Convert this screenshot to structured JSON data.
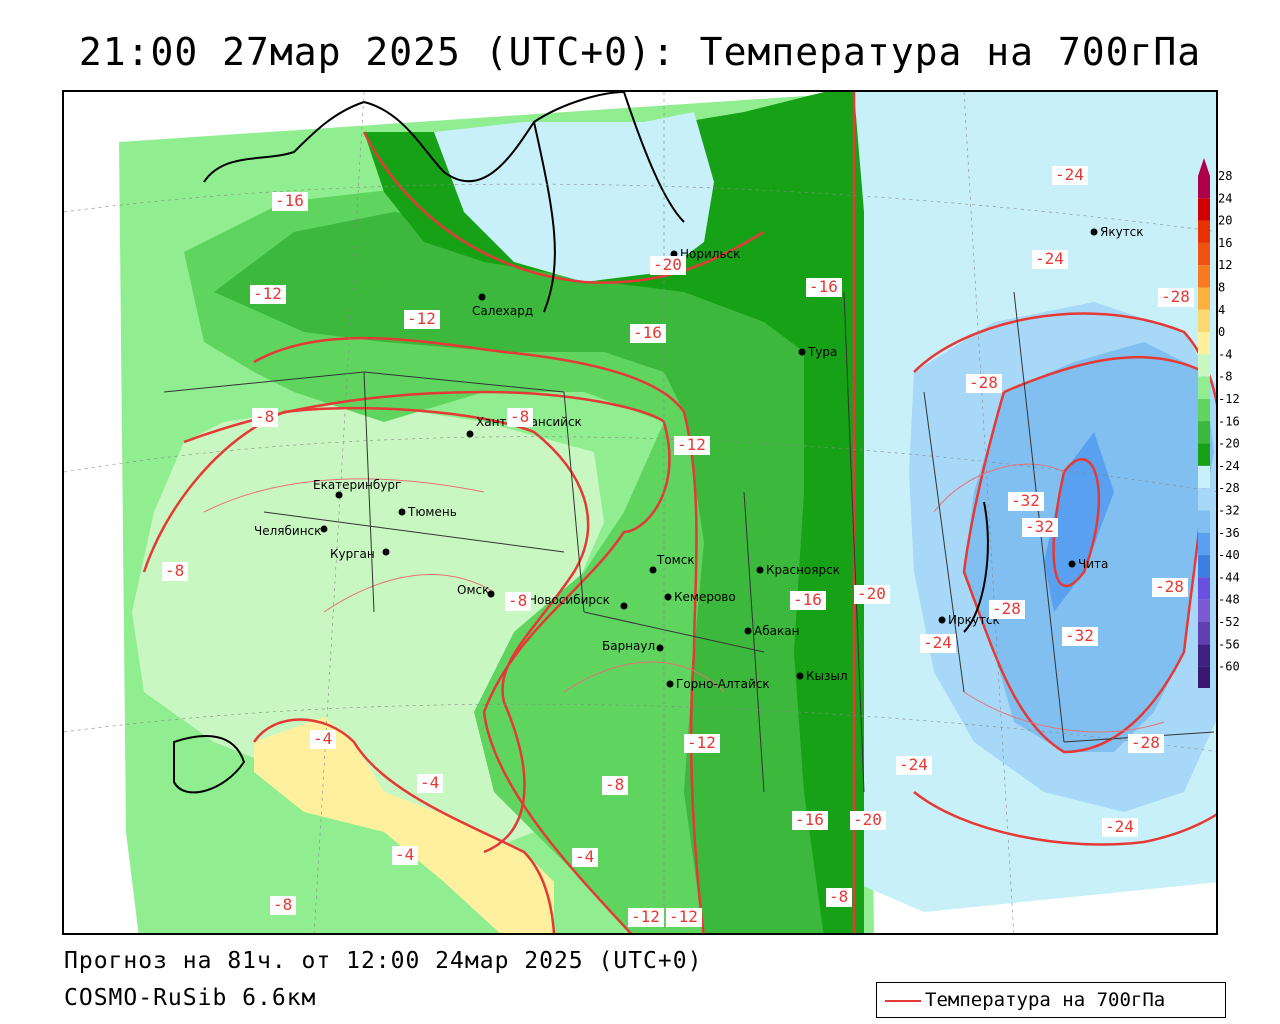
{
  "title": "21:00 27мар 2025 (UTC+0): Температура на 700гПа",
  "forecast_info": "Прогноз на 81ч. от 12:00 24мар 2025 (UTC+0)",
  "model_info": "COSMO-RuSib 6.6км",
  "legend": {
    "line_label": "Температура на 700гПа",
    "line_color": "#e53935"
  },
  "color_scale": {
    "levels": [
      28,
      24,
      20,
      16,
      12,
      8,
      4,
      0,
      -4,
      -8,
      -12,
      -16,
      -20,
      -24,
      -28,
      -32,
      -36,
      -40,
      -44,
      -48,
      -52,
      -56,
      -60
    ],
    "colors": [
      "#b0004a",
      "#d00000",
      "#e83000",
      "#f05010",
      "#f77a20",
      "#fbb040",
      "#fcd870",
      "#fff0a0",
      "#c9f7c1",
      "#90ee90",
      "#5fd45f",
      "#3cb83c",
      "#17a117",
      "#c8f0f8",
      "#a8d8f8",
      "#80bff0",
      "#5aa0f0",
      "#3c7fe0",
      "#6a50e0",
      "#7a5ad0",
      "#6040b0",
      "#402080",
      "#3a1870"
    ]
  },
  "cities": [
    {
      "name": "Якутск"
    },
    {
      "name": "Норильск"
    },
    {
      "name": "Салехард"
    },
    {
      "name": "Тура"
    },
    {
      "name": "Ханты-Мансийск"
    },
    {
      "name": "Екатеринбург"
    },
    {
      "name": "Тюмень"
    },
    {
      "name": "Челябинск"
    },
    {
      "name": "Курган"
    },
    {
      "name": "Омск"
    },
    {
      "name": "Новосибирск"
    },
    {
      "name": "Томск"
    },
    {
      "name": "Кемерово"
    },
    {
      "name": "Красноярск"
    },
    {
      "name": "Абакан"
    },
    {
      "name": "Барнаул"
    },
    {
      "name": "Горно-Алтайск"
    },
    {
      "name": "Кызыл"
    },
    {
      "name": "Иркутск"
    },
    {
      "name": "Чита"
    }
  ],
  "isotherm_labels": [
    "-24",
    "-24",
    "-28",
    "-16",
    "-20",
    "-16",
    "-12",
    "-12",
    "-16",
    "-8",
    "-8",
    "-12",
    "-28",
    "-32",
    "-32",
    "-28",
    "-8",
    "-8",
    "-20",
    "-16",
    "-24",
    "-28",
    "-32",
    "-12",
    "-4",
    "-4",
    "-4",
    "-4",
    "-8",
    "-24",
    "-28",
    "-16",
    "-20",
    "-24",
    "-8",
    "-12",
    "-12",
    "-8"
  ]
}
